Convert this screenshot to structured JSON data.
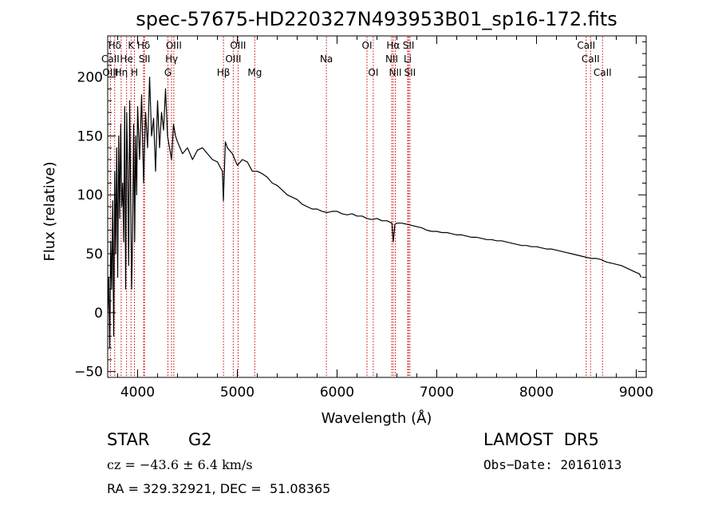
{
  "chart_data": {
    "type": "line",
    "title": "spec-57675-HD220327N493953B01_sp16-172.fits",
    "xlabel": "Wavelength (Å)",
    "ylabel": "Flux (relative)",
    "xlim": [
      3700,
      9100
    ],
    "ylim": [
      -55,
      235
    ],
    "xticks": [
      "4000",
      "5000",
      "6000",
      "7000",
      "8000",
      "9000"
    ],
    "yticks": [
      "−50",
      "0",
      "50",
      "100",
      "150",
      "200"
    ],
    "series": [
      {
        "x": [
          3700,
          3710,
          3720,
          3730,
          3740,
          3750,
          3760,
          3770,
          3780,
          3790,
          3800,
          3810,
          3820,
          3830,
          3840,
          3850,
          3860,
          3870,
          3880,
          3890,
          3900,
          3910,
          3920,
          3930,
          3940,
          3950,
          3960,
          3970,
          3980,
          3990,
          4000,
          4020,
          4040,
          4060,
          4080,
          4100,
          4120,
          4140,
          4160,
          4180,
          4200,
          4220,
          4240,
          4260,
          4280,
          4300,
          4320,
          4340,
          4360,
          4380,
          4400,
          4450,
          4500,
          4550,
          4600,
          4650,
          4700,
          4750,
          4800,
          4850,
          4860,
          4880,
          4900,
          4950,
          5000,
          5050,
          5100,
          5150,
          5200,
          5250,
          5300,
          5350,
          5400,
          5450,
          5500,
          5550,
          5600,
          5650,
          5700,
          5750,
          5800,
          5850,
          5900,
          5950,
          6000,
          6050,
          6100,
          6150,
          6200,
          6250,
          6300,
          6350,
          6400,
          6450,
          6500,
          6550,
          6563,
          6580,
          6600,
          6650,
          6700,
          6750,
          6800,
          6850,
          6900,
          6950,
          7000,
          7050,
          7100,
          7150,
          7200,
          7250,
          7300,
          7350,
          7400,
          7450,
          7500,
          7550,
          7600,
          7650,
          7700,
          7750,
          7800,
          7850,
          7900,
          7950,
          8000,
          8050,
          8100,
          8150,
          8200,
          8250,
          8300,
          8350,
          8400,
          8450,
          8500,
          8550,
          8600,
          8650,
          8700,
          8750,
          8800,
          8850,
          8900,
          8950,
          9000,
          9030,
          9050
        ],
        "values": [
          0,
          30,
          -30,
          60,
          20,
          95,
          -20,
          120,
          50,
          140,
          30,
          150,
          80,
          160,
          90,
          110,
          60,
          175,
          20,
          170,
          120,
          40,
          180,
          100,
          20,
          70,
          160,
          60,
          150,
          100,
          175,
          130,
          185,
          110,
          170,
          140,
          200,
          150,
          165,
          120,
          180,
          140,
          170,
          155,
          190,
          150,
          140,
          130,
          160,
          150,
          145,
          135,
          140,
          130,
          138,
          140,
          135,
          130,
          128,
          120,
          95,
          145,
          140,
          135,
          125,
          130,
          128,
          120,
          120,
          118,
          115,
          110,
          108,
          104,
          100,
          98,
          96,
          92,
          90,
          88,
          88,
          86,
          85,
          86,
          86,
          84,
          83,
          84,
          82,
          82,
          80,
          79,
          80,
          78,
          78,
          76,
          60,
          75,
          76,
          76,
          75,
          74,
          73,
          72,
          70,
          69,
          69,
          68,
          68,
          67,
          66,
          66,
          65,
          64,
          64,
          63,
          62,
          62,
          61,
          61,
          60,
          59,
          58,
          57,
          57,
          56,
          56,
          55,
          54,
          54,
          53,
          52,
          51,
          50,
          49,
          48,
          47,
          46,
          46,
          45,
          43,
          42,
          41,
          40,
          38,
          36,
          34,
          33,
          30
        ]
      }
    ],
    "line_labels": [
      {
        "text": "Hδ",
        "x": 3770,
        "row": 0
      },
      {
        "text": "K",
        "x": 3934,
        "row": 0
      },
      {
        "text": "Hδ",
        "x": 4060,
        "row": 0
      },
      {
        "text": "OIII",
        "x": 4363,
        "row": 0
      },
      {
        "text": "OIII",
        "x": 5007,
        "row": 0
      },
      {
        "text": "OI",
        "x": 6300,
        "row": 0
      },
      {
        "text": "Hα",
        "x": 6563,
        "row": 0
      },
      {
        "text": "SII",
        "x": 6717,
        "row": 0
      },
      {
        "text": "CaII",
        "x": 8498,
        "row": 0
      },
      {
        "text": "CaII",
        "x": 3727,
        "row": 1
      },
      {
        "text": "He",
        "x": 3889,
        "row": 1
      },
      {
        "text": "SII",
        "x": 4069,
        "row": 1
      },
      {
        "text": "Hγ",
        "x": 4340,
        "row": 1
      },
      {
        "text": "OIII",
        "x": 4959,
        "row": 1
      },
      {
        "text": "Na",
        "x": 5893,
        "row": 1
      },
      {
        "text": "NII",
        "x": 6548,
        "row": 1
      },
      {
        "text": "Li",
        "x": 6708,
        "row": 1
      },
      {
        "text": "CaII",
        "x": 8542,
        "row": 1
      },
      {
        "text": "OIII",
        "x": 3727,
        "row": 2
      },
      {
        "text": "Hη",
        "x": 3835,
        "row": 2
      },
      {
        "text": "H",
        "x": 3968,
        "row": 2
      },
      {
        "text": "G",
        "x": 4304,
        "row": 2
      },
      {
        "text": "Hβ",
        "x": 4861,
        "row": 2
      },
      {
        "text": "Mg",
        "x": 5175,
        "row": 2
      },
      {
        "text": "OI",
        "x": 6363,
        "row": 2
      },
      {
        "text": "NII",
        "x": 6584,
        "row": 2
      },
      {
        "text": "SII",
        "x": 6731,
        "row": 2
      },
      {
        "text": "CaII",
        "x": 8662,
        "row": 2
      }
    ],
    "line_color": "#000000",
    "marker_line_color": "#cc0000",
    "grid": false
  },
  "info": {
    "object_type": "STAR",
    "subclass": "G2",
    "survey": "LAMOST  DR5",
    "redshift": "cz = −43.6 ± 6.4 km/s",
    "obs_date": "Obs−Date: 20161013",
    "coords": "RA = 329.32921, DEC =  51.08365"
  }
}
